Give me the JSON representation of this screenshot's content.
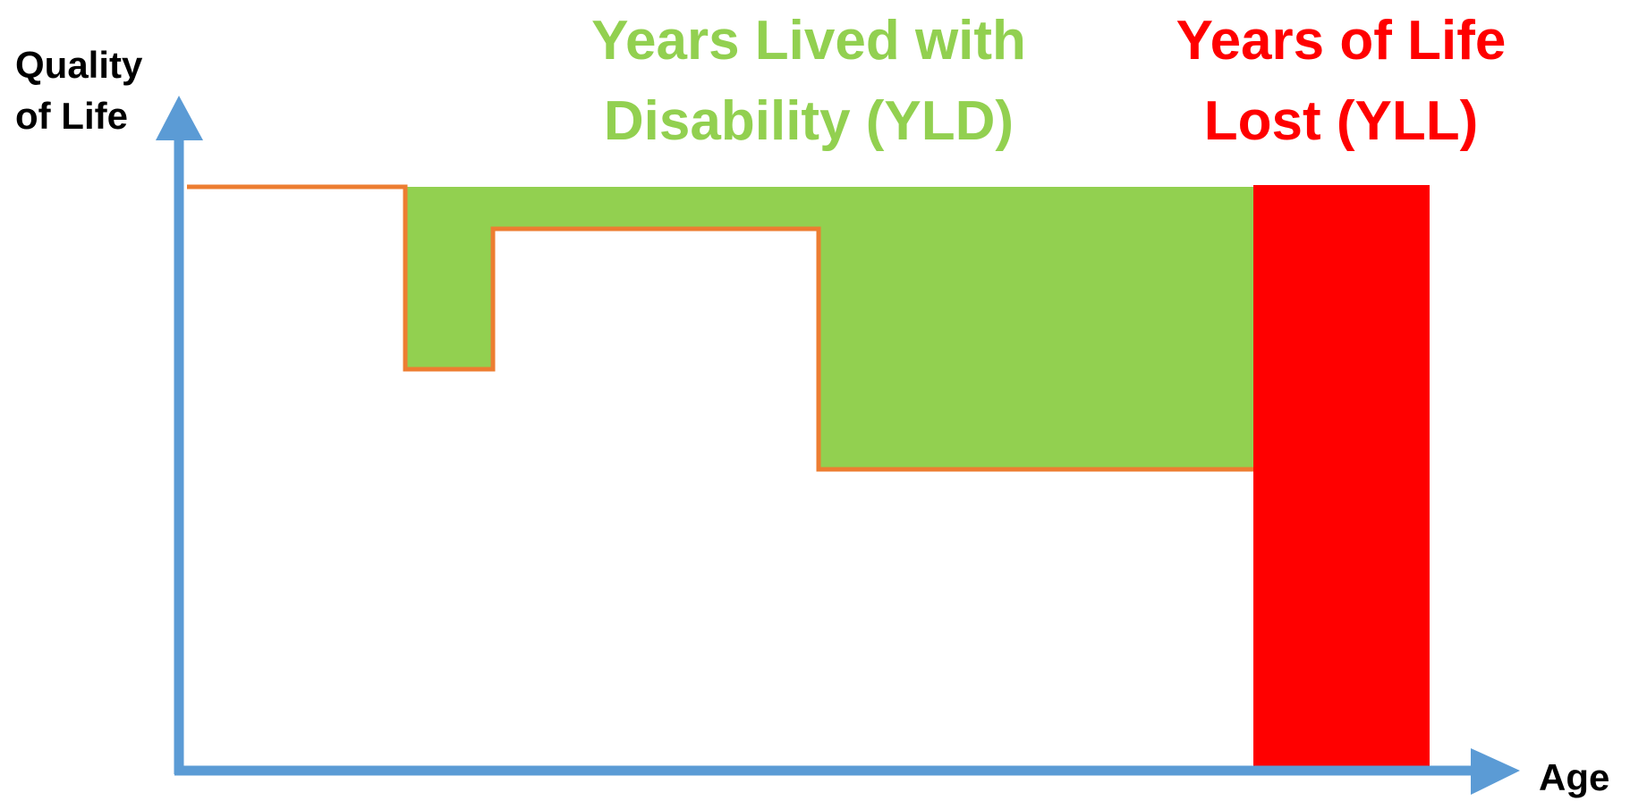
{
  "y_axis_label": [
    "Quality",
    "of Life"
  ],
  "x_axis_label": "Age",
  "yld_label": [
    "Years Lived with",
    "Disability (YLD)"
  ],
  "yll_label": [
    "Years of Life",
    "Lost (YLL)"
  ]
}
